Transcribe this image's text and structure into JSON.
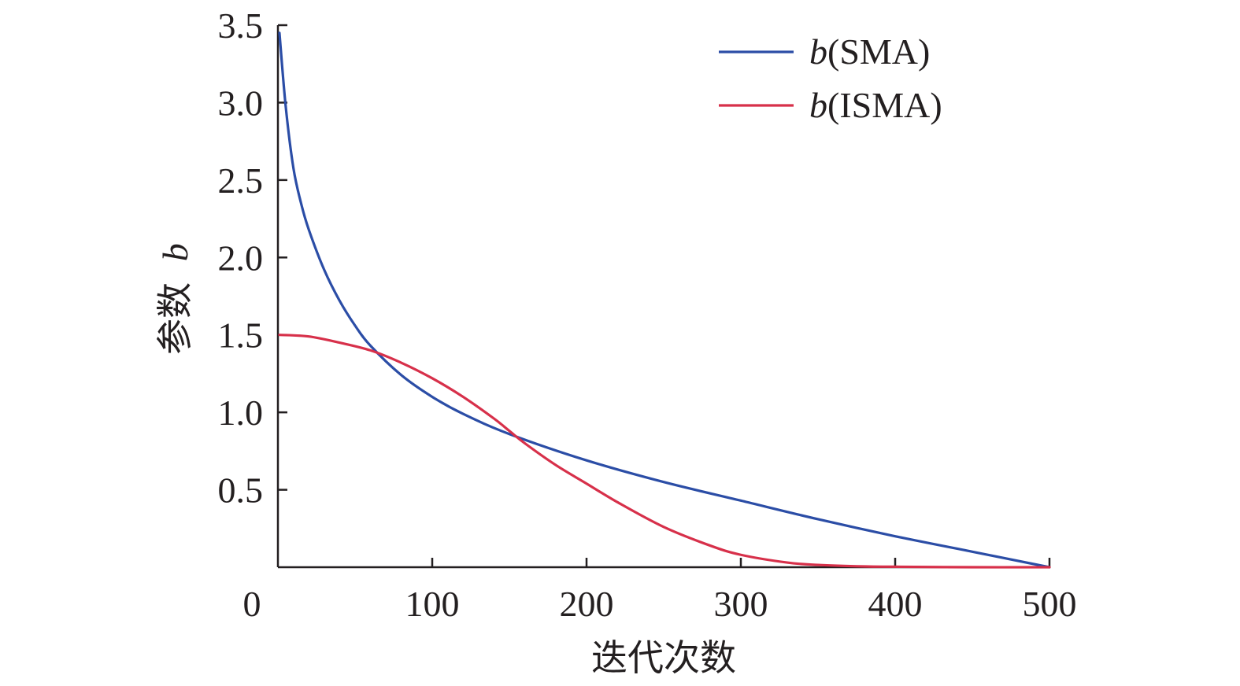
{
  "chart_data": {
    "type": "line",
    "title": "",
    "xlabel": "迭代次数",
    "ylabel": "参数",
    "ylabel_italic_var": "b",
    "xlim": [
      0,
      500
    ],
    "ylim": [
      0,
      3.5
    ],
    "x_ticks": [
      0,
      100,
      200,
      300,
      400,
      500
    ],
    "x_tick_labels": [
      "0",
      "100",
      "200",
      "300",
      "400",
      "500"
    ],
    "y_ticks": [
      0.5,
      1.0,
      1.5,
      2.0,
      2.5,
      3.0,
      3.5
    ],
    "y_tick_labels": [
      "0.5",
      "1.0",
      "1.5",
      "2.0",
      "2.5",
      "3.0",
      "3.5"
    ],
    "grid": false,
    "legend_position": "top-right",
    "series": [
      {
        "name": "b(SMA)",
        "legend_var": "b",
        "legend_suffix": "(SMA)",
        "color": "#2b4da6",
        "x": [
          1,
          5,
          10,
          15,
          20,
          30,
          40,
          50,
          60,
          80,
          100,
          120,
          150,
          200,
          250,
          300,
          350,
          400,
          450,
          500
        ],
        "y": [
          3.45,
          2.98,
          2.58,
          2.35,
          2.18,
          1.92,
          1.72,
          1.56,
          1.43,
          1.24,
          1.1,
          0.99,
          0.86,
          0.69,
          0.55,
          0.43,
          0.31,
          0.2,
          0.1,
          0.0
        ]
      },
      {
        "name": "b(ISMA)",
        "legend_var": "b",
        "legend_suffix": "(ISMA)",
        "color": "#d7304a",
        "x": [
          1,
          20,
          40,
          60,
          80,
          100,
          120,
          140,
          150,
          160,
          180,
          200,
          220,
          250,
          280,
          300,
          330,
          350,
          380,
          400,
          450,
          500
        ],
        "y": [
          1.5,
          1.49,
          1.45,
          1.4,
          1.32,
          1.22,
          1.1,
          0.96,
          0.88,
          0.8,
          0.66,
          0.54,
          0.42,
          0.26,
          0.14,
          0.08,
          0.03,
          0.015,
          0.005,
          0.003,
          0.0,
          0.0
        ]
      }
    ]
  }
}
